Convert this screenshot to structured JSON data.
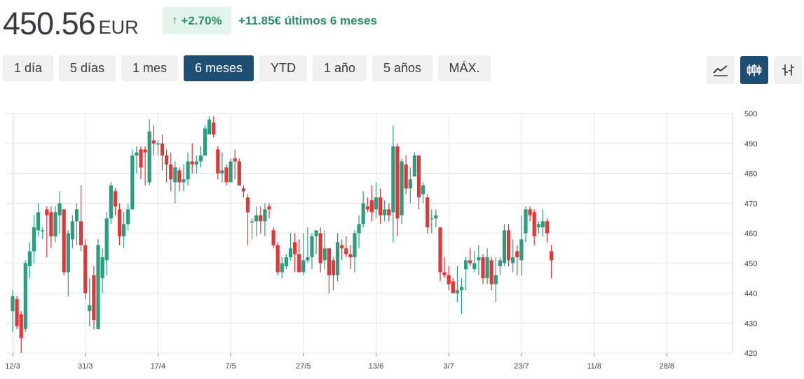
{
  "header": {
    "price": "450.56",
    "currency": "EUR",
    "badge_arrow": "↑",
    "change_percent": "+2.70%",
    "change_text": "+11.85€ últimos 6 meses"
  },
  "ranges": [
    {
      "label": "1 día"
    },
    {
      "label": "5 días"
    },
    {
      "label": "1 mes"
    },
    {
      "label": "6 meses",
      "active": true
    },
    {
      "label": "YTD"
    },
    {
      "label": "1 año"
    },
    {
      "label": "5 años"
    },
    {
      "label": "MÁX."
    }
  ],
  "chart_types": [
    {
      "icon": "line-chart-icon",
      "active": false
    },
    {
      "icon": "candlestick-icon",
      "active": true
    },
    {
      "icon": "ohlc-bar-icon",
      "active": false
    }
  ],
  "colors": {
    "up": "#2e9c7e",
    "down": "#e0373a",
    "accent": "#1e4f73",
    "grid": "#e6e6e6"
  },
  "chart_data": {
    "type": "candlestick",
    "ylim": [
      420,
      500
    ],
    "yticks": [
      420,
      430,
      440,
      450,
      460,
      470,
      480,
      490,
      500
    ],
    "xticks": [
      "12/3",
      "31/3",
      "17/4",
      "7/5",
      "27/5",
      "13/6",
      "3/7",
      "23/7",
      "11/8",
      "28/8"
    ],
    "xtick_index": [
      0,
      17,
      34,
      51,
      68,
      85,
      102,
      119,
      136,
      153
    ],
    "grid": true,
    "y_axis_position": "right",
    "candles": [
      [
        434,
        439,
        441,
        427
      ],
      [
        438,
        429,
        439,
        428
      ],
      [
        433,
        425,
        434,
        420
      ],
      [
        428,
        450,
        451,
        427
      ],
      [
        449,
        454,
        457,
        445
      ],
      [
        454,
        462,
        466,
        450
      ],
      [
        461,
        467,
        470,
        459
      ],
      [
        461,
        461,
        462,
        458
      ],
      [
        468,
        466,
        469,
        452
      ],
      [
        467,
        459,
        469,
        455
      ],
      [
        459,
        467,
        469,
        457
      ],
      [
        466,
        470,
        474,
        460
      ],
      [
        468,
        447,
        468,
        446
      ],
      [
        447,
        460,
        461,
        439
      ],
      [
        458,
        464,
        466,
        455
      ],
      [
        464,
        468,
        470,
        456
      ],
      [
        464,
        456,
        476,
        454
      ],
      [
        456,
        440,
        458,
        438
      ],
      [
        434,
        436,
        445,
        429
      ],
      [
        446,
        431,
        449,
        428
      ],
      [
        428,
        456,
        458,
        428
      ],
      [
        445,
        452,
        455,
        440
      ],
      [
        451,
        465,
        467,
        446
      ],
      [
        465,
        476,
        477,
        463
      ],
      [
        474,
        469,
        475,
        466
      ],
      [
        468,
        459,
        470,
        456
      ],
      [
        459,
        463,
        467,
        455
      ],
      [
        463,
        468,
        470,
        461
      ],
      [
        468,
        486,
        488,
        468
      ],
      [
        486,
        487,
        489,
        480
      ],
      [
        488,
        482,
        489,
        478
      ],
      [
        488,
        487,
        489,
        476
      ],
      [
        477,
        494,
        498,
        476
      ],
      [
        491,
        490,
        496,
        486
      ],
      [
        490,
        490,
        491,
        486
      ],
      [
        490,
        486,
        493,
        481
      ],
      [
        486,
        483,
        488,
        477
      ],
      [
        483,
        478,
        487,
        474
      ],
      [
        477,
        482,
        484,
        470
      ],
      [
        481,
        477,
        482,
        474
      ],
      [
        477,
        478,
        483,
        474
      ],
      [
        478,
        484,
        487,
        476
      ],
      [
        484,
        483,
        490,
        480
      ],
      [
        483,
        484,
        486,
        480
      ],
      [
        484,
        486,
        489,
        482
      ],
      [
        486,
        495,
        496,
        486
      ],
      [
        493,
        498,
        499,
        493
      ],
      [
        497,
        493,
        499,
        492
      ],
      [
        488,
        480,
        489,
        478
      ],
      [
        480,
        481,
        487,
        477
      ],
      [
        482,
        477,
        483,
        476
      ],
      [
        477,
        484,
        485,
        479
      ],
      [
        485,
        484,
        488,
        478
      ],
      [
        484,
        476,
        485,
        476
      ],
      [
        475,
        474,
        476,
        472
      ],
      [
        472,
        467,
        473,
        456
      ],
      [
        464,
        464,
        465,
        458
      ],
      [
        464,
        466,
        469,
        459
      ],
      [
        466,
        464,
        469,
        460
      ],
      [
        464,
        468,
        470,
        459
      ],
      [
        469,
        468,
        470,
        465
      ],
      [
        461,
        456,
        462,
        455
      ],
      [
        456,
        447,
        457,
        446
      ],
      [
        447,
        450,
        452,
        445
      ],
      [
        449,
        452,
        453,
        448
      ],
      [
        452,
        455,
        460,
        451
      ],
      [
        457,
        453,
        460,
        447
      ],
      [
        453,
        447,
        458,
        447
      ],
      [
        447,
        451,
        460,
        446
      ],
      [
        451,
        452,
        462,
        450
      ],
      [
        452,
        459,
        460,
        448
      ],
      [
        459,
        461,
        461,
        453
      ],
      [
        460,
        450,
        462,
        447
      ],
      [
        451,
        455,
        461,
        448
      ],
      [
        455,
        446,
        455,
        440
      ],
      [
        451,
        446,
        452,
        441
      ],
      [
        446,
        457,
        460,
        444
      ],
      [
        456,
        455,
        458,
        451
      ],
      [
        455,
        453,
        459,
        452
      ],
      [
        453,
        452,
        456,
        448
      ],
      [
        452,
        460,
        461,
        447
      ],
      [
        460,
        463,
        466,
        455
      ],
      [
        463,
        470,
        474,
        462
      ],
      [
        469,
        468,
        472,
        467
      ],
      [
        471,
        467,
        476,
        464
      ],
      [
        468,
        472,
        477,
        465
      ],
      [
        472,
        466,
        475,
        463
      ],
      [
        466,
        468,
        471,
        464
      ],
      [
        468,
        466,
        470,
        464
      ],
      [
        467,
        489,
        496,
        457
      ],
      [
        489,
        465,
        490,
        459
      ],
      [
        466,
        484,
        485,
        463
      ],
      [
        483,
        475,
        486,
        473
      ],
      [
        475,
        478,
        482,
        470
      ],
      [
        479,
        486,
        487,
        481
      ],
      [
        486,
        472,
        486,
        468
      ],
      [
        473,
        476,
        477,
        470
      ],
      [
        472,
        462,
        473,
        460
      ],
      [
        465,
        465,
        468,
        460
      ],
      [
        465,
        466,
        468,
        462
      ],
      [
        462,
        447,
        462,
        444
      ],
      [
        447,
        446,
        452,
        445
      ],
      [
        446,
        443,
        449,
        441
      ],
      [
        444,
        440,
        445,
        440
      ],
      [
        440,
        441,
        449,
        437
      ],
      [
        441,
        442,
        445,
        433
      ],
      [
        448,
        451,
        452,
        441
      ],
      [
        451,
        450,
        455,
        449
      ],
      [
        448,
        450,
        454,
        447
      ],
      [
        451,
        452,
        456,
        446
      ],
      [
        452,
        445,
        453,
        443
      ],
      [
        445,
        452,
        455,
        443
      ],
      [
        451,
        443,
        452,
        441
      ],
      [
        443,
        446,
        452,
        437
      ],
      [
        449,
        451,
        452,
        446
      ],
      [
        450,
        461,
        463,
        449
      ],
      [
        461,
        451,
        463,
        449
      ],
      [
        450,
        452,
        458,
        447
      ],
      [
        454,
        452,
        456,
        446
      ],
      [
        451,
        458,
        466,
        446
      ],
      [
        460,
        468,
        469,
        457
      ],
      [
        468,
        466,
        469,
        464
      ],
      [
        467,
        459,
        468,
        456
      ],
      [
        462,
        463,
        464,
        460
      ],
      [
        462,
        464,
        468,
        459
      ],
      [
        464,
        460,
        465,
        457
      ],
      [
        454,
        451,
        456,
        445
      ]
    ]
  }
}
